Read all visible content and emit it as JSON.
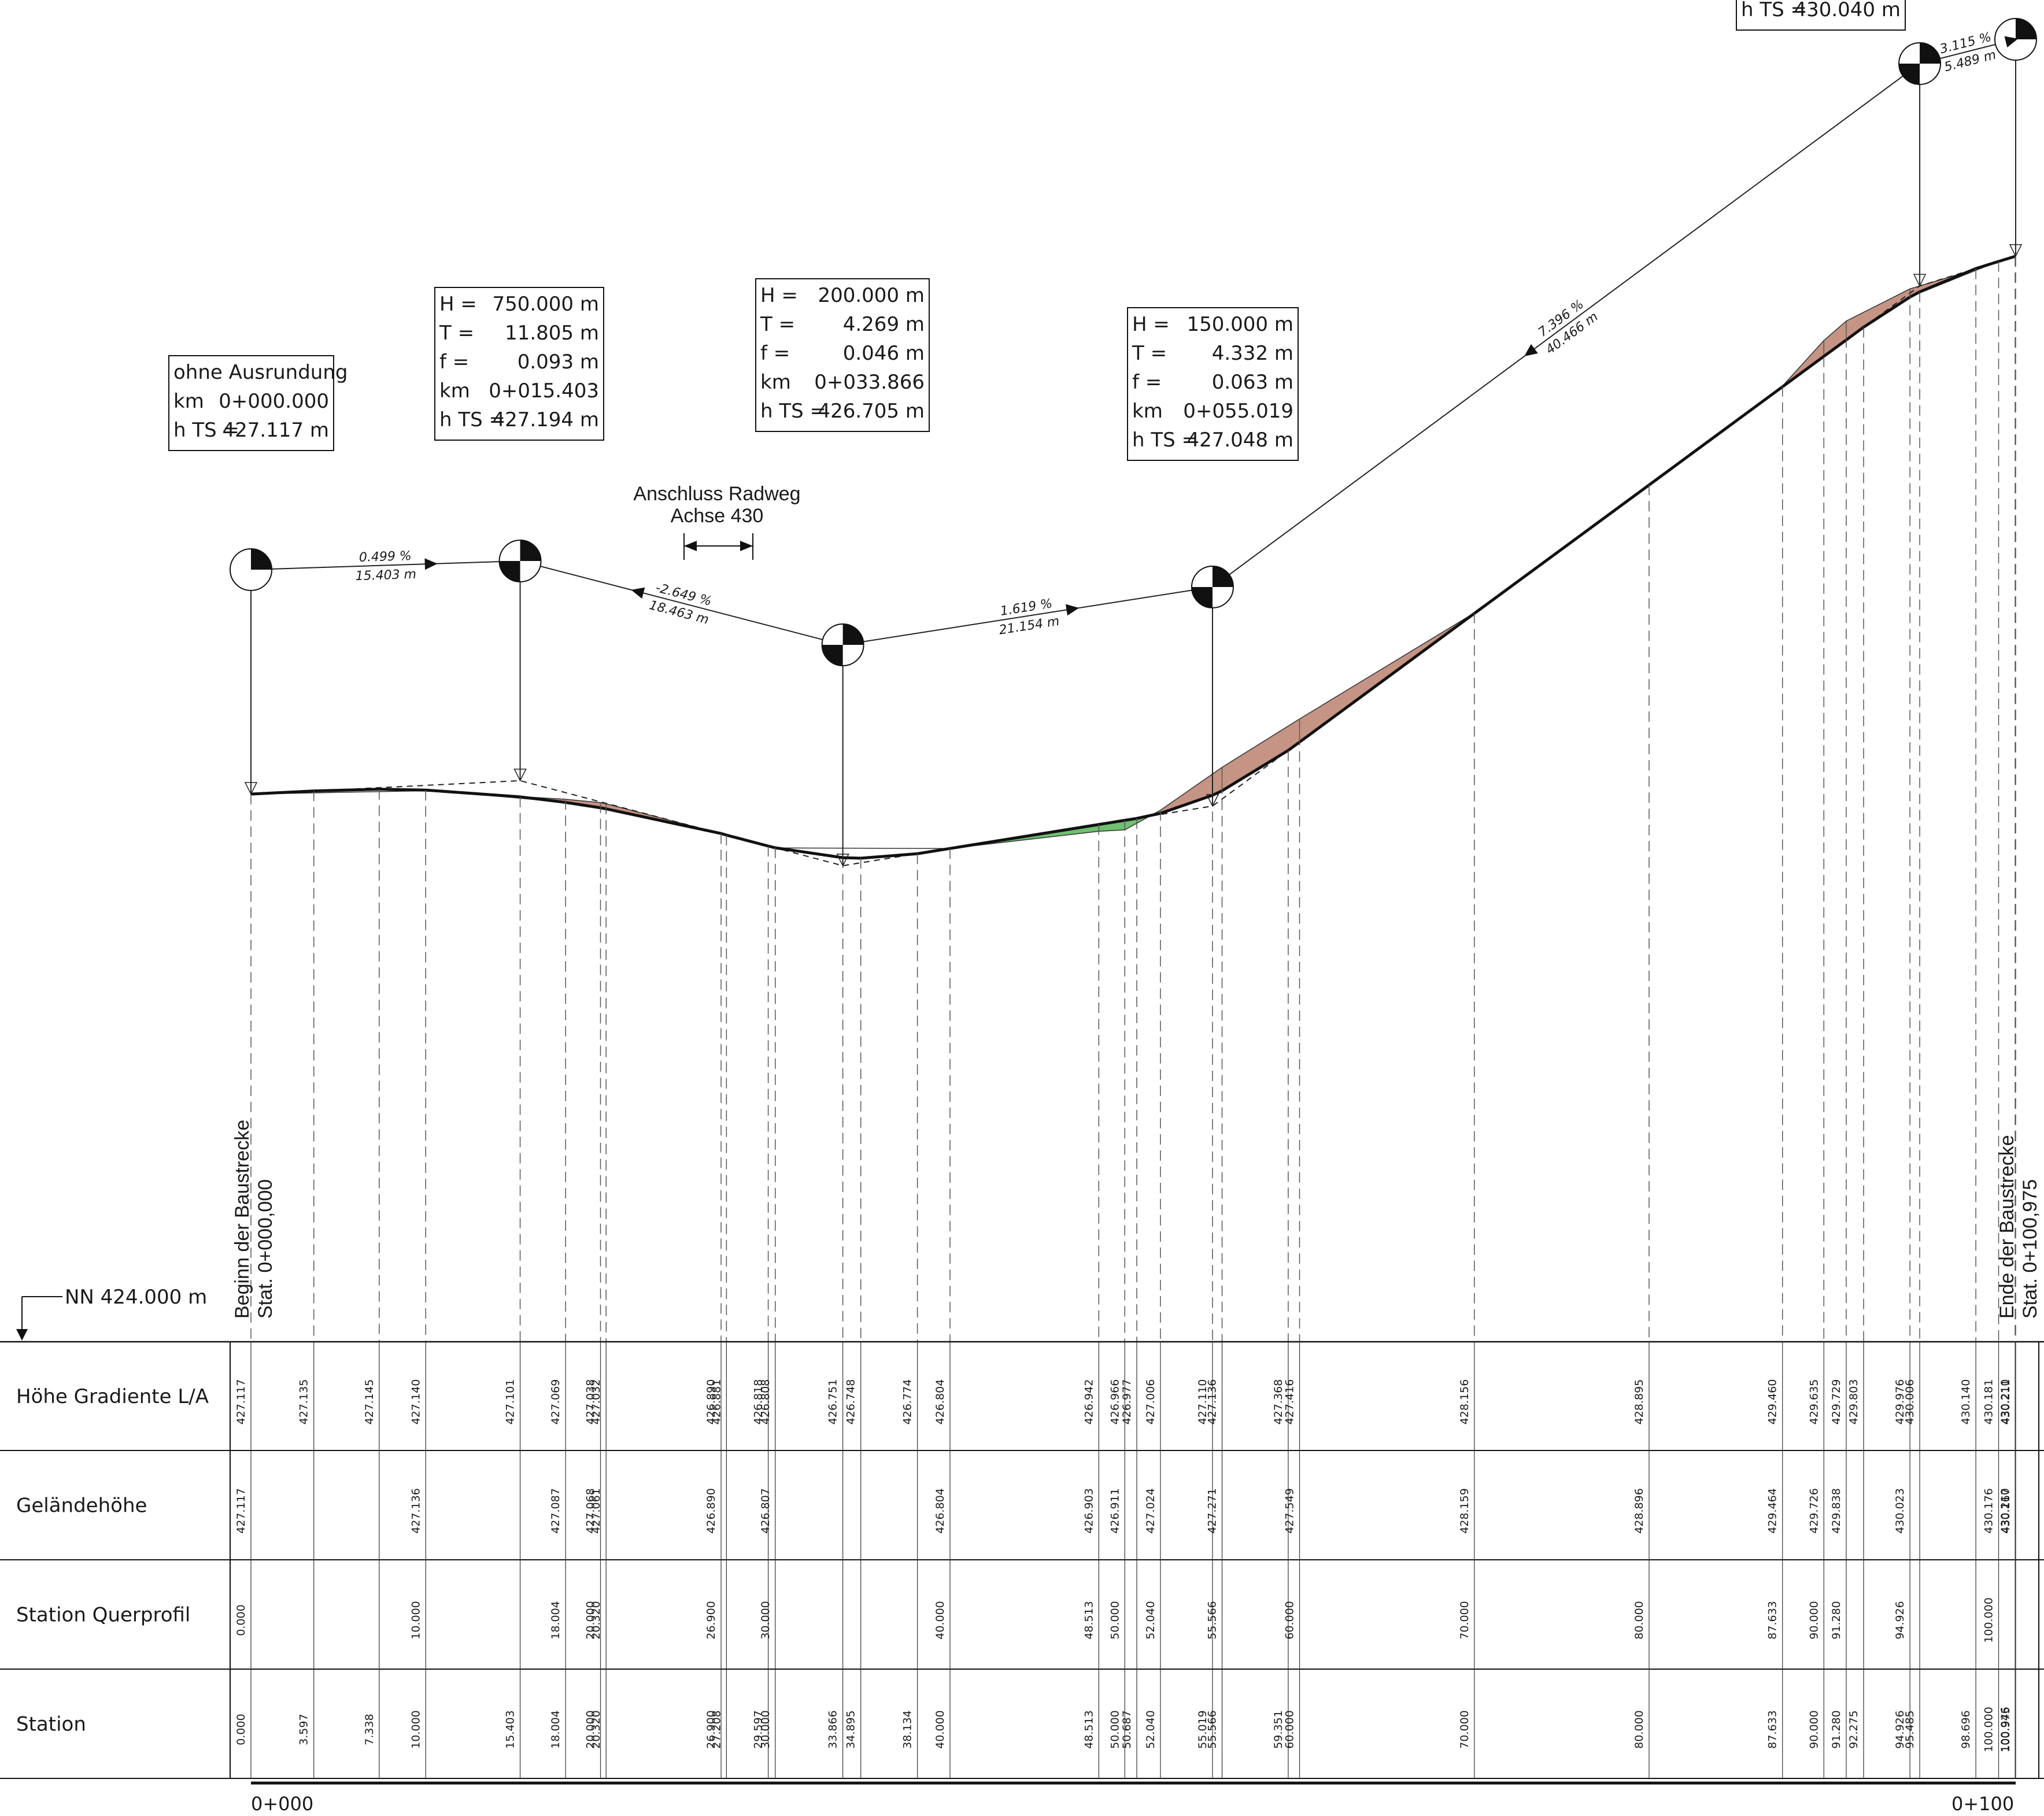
{
  "datum": "NN 424.000 m",
  "row_labels": [
    "Höhe Gradiente L/A",
    "Geländehöhe",
    "Station Querprofil",
    "Station"
  ],
  "start_label": [
    "Beginn der Baustrecke",
    "Stat. 0+000,000"
  ],
  "end_label": [
    "Ende der Baustrecke",
    "Stat. 0+100,975"
  ],
  "axis_labels": [
    "0+000",
    "0+100"
  ],
  "connection_note": [
    "Anschluss Radweg",
    "Achse 430"
  ],
  "curve_boxes": [
    {
      "lines": [
        [
          "ohne Ausrundung",
          ""
        ],
        [
          "km",
          "0+000.000"
        ],
        [
          "h TS =",
          "427.117 m"
        ]
      ]
    },
    {
      "lines": [
        [
          "H =",
          "750.000 m"
        ],
        [
          "T =",
          "11.805 m"
        ],
        [
          "f =",
          "0.093 m"
        ],
        [
          "km",
          "0+015.403"
        ],
        [
          "h TS =",
          "427.194 m"
        ]
      ]
    },
    {
      "lines": [
        [
          "H =",
          "200.000 m"
        ],
        [
          "T =",
          "4.269 m"
        ],
        [
          "f =",
          "0.046 m"
        ],
        [
          "km",
          "0+033.866"
        ],
        [
          "h TS =",
          "426.705 m"
        ]
      ]
    },
    {
      "lines": [
        [
          "H =",
          "150.000 m"
        ],
        [
          "T =",
          "4.332 m"
        ],
        [
          "f =",
          "0.063 m"
        ],
        [
          "km",
          "0+055.019"
        ],
        [
          "h TS =",
          "427.048 m"
        ]
      ]
    },
    {
      "lines": [
        [
          "h TS =",
          "430.040 m"
        ]
      ]
    }
  ],
  "grades": [
    {
      "pct": "0.499 %",
      "len": "15.403 m"
    },
    {
      "pct": "-2.649 %",
      "len": "18.463 m"
    },
    {
      "pct": "1.619 %",
      "len": "21.154 m"
    },
    {
      "pct": "7.396 %",
      "len": "40.466 m"
    },
    {
      "pct": "3.115 %",
      "len": "5.489 m"
    }
  ],
  "pvi": [
    {
      "station": 0.0,
      "elev": 427.117
    },
    {
      "station": 15.403,
      "elev": 427.194
    },
    {
      "station": 33.866,
      "elev": 426.705
    },
    {
      "station": 55.019,
      "elev": 427.048
    },
    {
      "station": 95.485,
      "elev": 430.04
    },
    {
      "station": 100.975,
      "elev": 430.211
    }
  ],
  "cols": [
    {
      "st": "0.000",
      "h": "427.117",
      "g": "427.117",
      "q": "0.000"
    },
    {
      "st": "3.597",
      "h": "427.135"
    },
    {
      "st": "7.338",
      "h": "427.145"
    },
    {
      "st": "10.000",
      "h": "427.140",
      "g": "427.136",
      "q": "10.000"
    },
    {
      "st": "15.403",
      "h": "427.101"
    },
    {
      "st": "18.004",
      "h": "427.069",
      "g": "427.087",
      "q": "18.004"
    },
    {
      "st": "20.000",
      "h": "427.038",
      "g": "427.068",
      "q": "20.000"
    },
    {
      "st": "20.320",
      "h": "427.032",
      "g": "427.061",
      "q": "20.320"
    },
    {
      "st": "26.900",
      "h": "426.890",
      "g": "426.890",
      "q": "26.900"
    },
    {
      "st": "27.208",
      "h": "426.881"
    },
    {
      "st": "29.597",
      "h": "426.818"
    },
    {
      "st": "30.000",
      "h": "426.808",
      "g": "426.807",
      "q": "30.000"
    },
    {
      "st": "33.866",
      "h": "426.751"
    },
    {
      "st": "34.895",
      "h": "426.748"
    },
    {
      "st": "38.134",
      "h": "426.774"
    },
    {
      "st": "40.000",
      "h": "426.804",
      "g": "426.804",
      "q": "40.000"
    },
    {
      "st": "48.513",
      "h": "426.942",
      "g": "426.903",
      "q": "48.513"
    },
    {
      "st": "50.000",
      "h": "426.966",
      "g": "426.911",
      "q": "50.000"
    },
    {
      "st": "50.687",
      "h": "426.977"
    },
    {
      "st": "52.040",
      "h": "427.006",
      "g": "427.024",
      "q": "52.040"
    },
    {
      "st": "55.019",
      "h": "427.110"
    },
    {
      "st": "55.566",
      "h": "427.136",
      "g": "427.271",
      "q": "55.566"
    },
    {
      "st": "59.351",
      "h": "427.368"
    },
    {
      "st": "60.000",
      "h": "427.416",
      "g": "427.549",
      "q": "60.000"
    },
    {
      "st": "70.000",
      "h": "428.156",
      "g": "428.159",
      "q": "70.000"
    },
    {
      "st": "80.000",
      "h": "428.895",
      "g": "428.896",
      "q": "80.000"
    },
    {
      "st": "87.633",
      "h": "429.460",
      "g": "429.464",
      "q": "87.633"
    },
    {
      "st": "90.000",
      "h": "429.635",
      "g": "429.726",
      "q": "90.000"
    },
    {
      "st": "91.280",
      "h": "429.729",
      "g": "429.838",
      "q": "91.280"
    },
    {
      "st": "92.275",
      "h": "429.803"
    },
    {
      "st": "94.926",
      "h": "429.976",
      "g": "430.023",
      "q": "94.926"
    },
    {
      "st": "95.485",
      "h": "430.006"
    },
    {
      "st": "98.696",
      "h": "430.140"
    },
    {
      "st": "100.000",
      "h": "430.181",
      "g": "430.176",
      "q": "100.000"
    },
    {
      "st": "100.946",
      "h": "430.210",
      "g": "430.210"
    },
    {
      "st": "100.975",
      "h": "430.211",
      "g": "430.167"
    }
  ],
  "colors": {
    "cut_fill": "#c59484",
    "fill_green": "#6fc06f",
    "line": "#111111"
  }
}
